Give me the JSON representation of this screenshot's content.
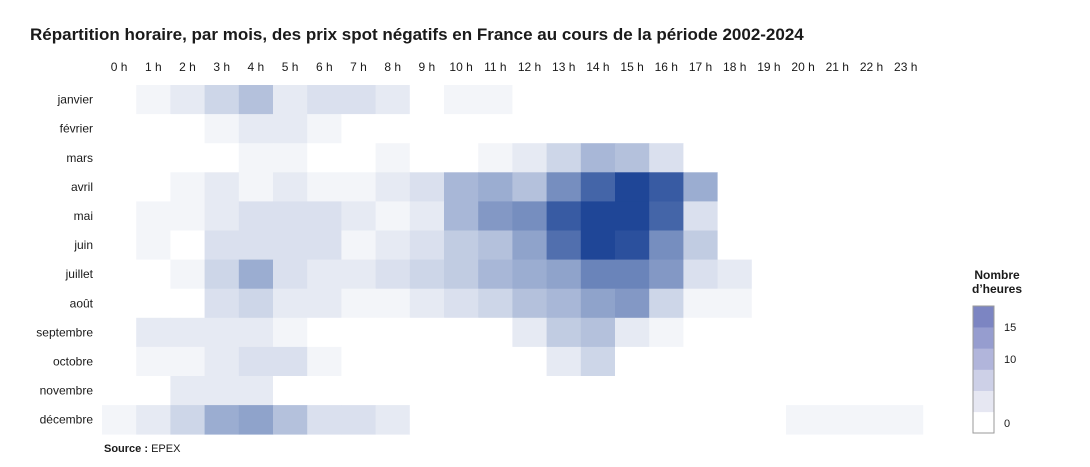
{
  "title": "Répartition horaire, par mois, des prix spot négatifs en France au cours de la période 2002-2024",
  "source": {
    "label": "Source :",
    "value": "EPEX"
  },
  "legend": {
    "title_line1": "Nombre",
    "title_line2": "d’heures",
    "ticks": [
      "0",
      "10",
      "15"
    ],
    "tick_values": [
      0,
      10,
      15
    ]
  },
  "colors": {
    "low": "#ffffff",
    "high": "#1f4697",
    "legend_steps": [
      "#ffffff",
      "#e6e7f2",
      "#cdd0e7",
      "#b1b5db",
      "#969dcf",
      "#7c85c2"
    ]
  },
  "chart_data": {
    "type": "heatmap",
    "title": "Répartition horaire, par mois, des prix spot négatifs en France au cours de la période 2002-2024",
    "x": [
      "0 h",
      "1 h",
      "2 h",
      "3 h",
      "4 h",
      "5 h",
      "6 h",
      "7 h",
      "8 h",
      "9 h",
      "10 h",
      "11 h",
      "12 h",
      "13 h",
      "14 h",
      "15 h",
      "16 h",
      "17 h",
      "18 h",
      "19 h",
      "20 h",
      "21 h",
      "22 h",
      "23 h"
    ],
    "y": [
      "janvier",
      "février",
      "mars",
      "avril",
      "mai",
      "juin",
      "juillet",
      "août",
      "septembre",
      "octobre",
      "novembre",
      "décembre"
    ],
    "x_axis_position": "top",
    "legend": "right",
    "grid": false,
    "value_range": [
      0,
      18
    ],
    "values": [
      [
        0,
        1,
        2,
        4,
        6,
        2,
        3,
        3,
        2,
        0,
        1,
        1,
        0,
        0,
        0,
        0,
        0,
        0,
        0,
        0,
        0,
        0,
        0,
        0
      ],
      [
        0,
        0,
        0,
        1,
        2,
        2,
        1,
        0,
        0,
        0,
        0,
        0,
        0,
        0,
        0,
        0,
        0,
        0,
        0,
        0,
        0,
        0,
        0,
        0
      ],
      [
        0,
        0,
        0,
        0,
        1,
        1,
        0,
        0,
        1,
        0,
        0,
        1,
        2,
        4,
        7,
        6,
        3,
        0,
        0,
        0,
        0,
        0,
        0,
        0
      ],
      [
        0,
        0,
        1,
        2,
        1,
        2,
        1,
        1,
        2,
        3,
        7,
        8,
        6,
        11,
        15,
        18,
        16,
        8,
        0,
        0,
        0,
        0,
        0,
        0
      ],
      [
        0,
        1,
        1,
        2,
        3,
        3,
        3,
        2,
        1,
        2,
        7,
        10,
        11,
        16,
        19,
        19,
        15,
        3,
        0,
        0,
        0,
        0,
        0,
        0
      ],
      [
        0,
        1,
        0,
        3,
        3,
        3,
        3,
        1,
        2,
        3,
        5,
        6,
        9,
        14,
        18,
        17,
        11,
        5,
        0,
        0,
        0,
        0,
        0,
        0
      ],
      [
        0,
        0,
        1,
        4,
        8,
        3,
        2,
        2,
        3,
        4,
        5,
        7,
        8,
        9,
        12,
        12,
        10,
        3,
        2,
        0,
        0,
        0,
        0,
        0
      ],
      [
        0,
        0,
        0,
        3,
        4,
        2,
        2,
        1,
        1,
        2,
        3,
        4,
        6,
        7,
        9,
        10,
        4,
        1,
        1,
        0,
        0,
        0,
        0,
        0
      ],
      [
        0,
        2,
        2,
        2,
        2,
        1,
        0,
        0,
        0,
        0,
        0,
        0,
        2,
        5,
        6,
        2,
        1,
        0,
        0,
        0,
        0,
        0,
        0,
        0
      ],
      [
        0,
        1,
        1,
        2,
        3,
        3,
        1,
        0,
        0,
        0,
        0,
        0,
        0,
        2,
        4,
        0,
        0,
        0,
        0,
        0,
        0,
        0,
        0,
        0
      ],
      [
        0,
        0,
        2,
        2,
        2,
        0,
        0,
        0,
        0,
        0,
        0,
        0,
        0,
        0,
        0,
        0,
        0,
        0,
        0,
        0,
        0,
        0,
        0,
        0
      ],
      [
        1,
        2,
        4,
        8,
        9,
        6,
        3,
        3,
        2,
        0,
        0,
        0,
        0,
        0,
        0,
        0,
        0,
        0,
        0,
        0,
        1,
        1,
        1,
        1
      ]
    ]
  }
}
